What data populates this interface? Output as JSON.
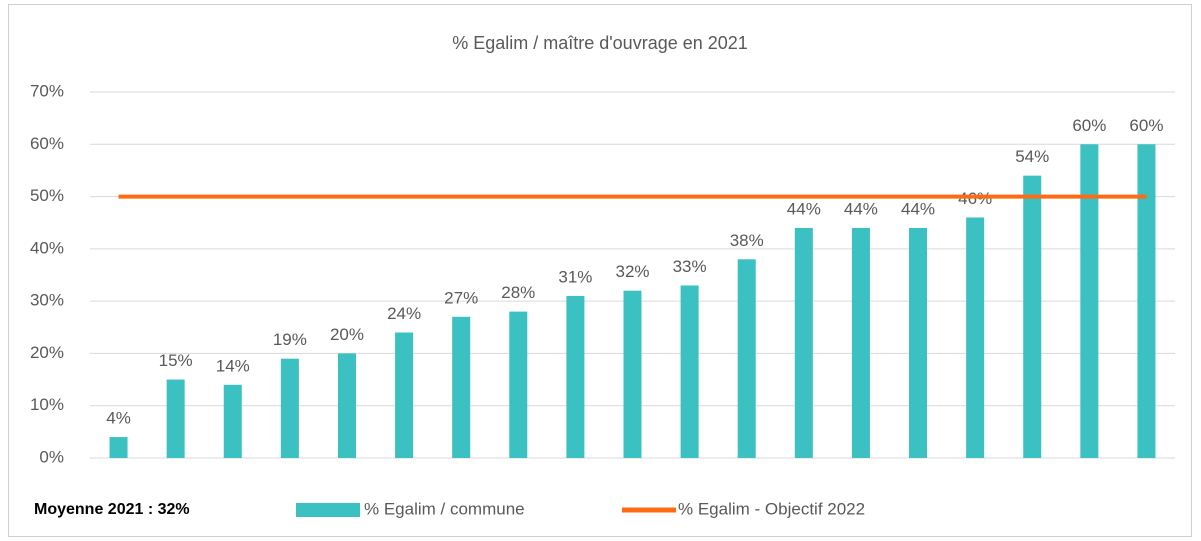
{
  "chart_data": {
    "type": "bar",
    "title": "% Egalim / maître d'ouvrage en 2021",
    "annotation": "Moyenne 2021 : 32%",
    "categories": [
      null,
      null,
      null,
      null,
      null,
      null,
      null,
      null,
      null,
      null,
      null,
      null,
      null,
      null,
      null,
      null,
      null,
      null,
      null
    ],
    "series": [
      {
        "name": "% Egalim / commune",
        "type": "bar",
        "color": "#3bc1c1",
        "values": [
          4,
          15,
          14,
          19,
          20,
          24,
          27,
          28,
          31,
          32,
          33,
          38,
          44,
          44,
          44,
          46,
          54,
          60,
          60
        ],
        "value_labels": [
          "4%",
          "15%",
          "14%",
          "19%",
          "20%",
          "24%",
          "27%",
          "28%",
          "31%",
          "32%",
          "33%",
          "38%",
          "44%",
          "44%",
          "44%",
          "46%",
          "54%",
          "60%",
          "60%"
        ]
      },
      {
        "name": "% Egalim - Objectif 2022",
        "type": "line",
        "color": "#ff6a13",
        "values": [
          50,
          50,
          50,
          50,
          50,
          50,
          50,
          50,
          50,
          50,
          50,
          50,
          50,
          50,
          50,
          50,
          50,
          50,
          50
        ]
      }
    ],
    "ylim": [
      0,
      70
    ],
    "yticks": [
      {
        "value": 0,
        "label": "0%"
      },
      {
        "value": 10,
        "label": "10%"
      },
      {
        "value": 20,
        "label": "20%"
      },
      {
        "value": 30,
        "label": "30%"
      },
      {
        "value": 40,
        "label": "40%"
      },
      {
        "value": 50,
        "label": "50%"
      },
      {
        "value": 60,
        "label": "60%"
      },
      {
        "value": 70,
        "label": "70%"
      }
    ],
    "grid": true,
    "legend": "bottom"
  }
}
